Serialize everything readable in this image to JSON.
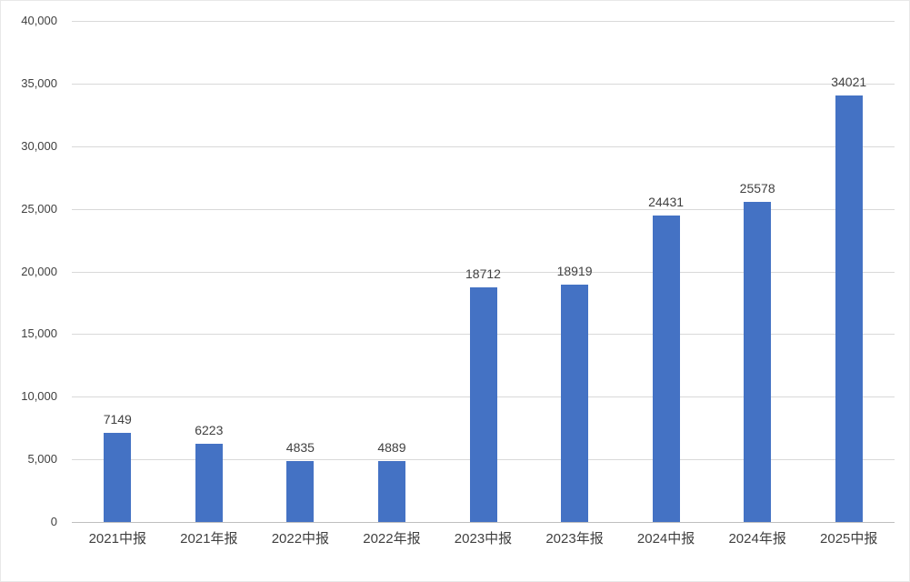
{
  "chart_data": {
    "type": "bar",
    "title": "",
    "xlabel": "",
    "ylabel": "",
    "categories": [
      "2021中报",
      "2021年报",
      "2022中报",
      "2022年报",
      "2023中报",
      "2023年报",
      "2024中报",
      "2024年报",
      "2025中报"
    ],
    "values": [
      7149,
      6223,
      4835,
      4889,
      18712,
      18919,
      24431,
      25578,
      34021
    ],
    "value_labels": [
      "7149",
      "6223",
      "4835",
      "4889",
      "18712",
      "18919",
      "24431",
      "25578",
      "34021"
    ],
    "ylim": [
      0,
      40000
    ],
    "ytick_interval": 5000,
    "ytick_labels": [
      "0",
      "5,000",
      "10,000",
      "15,000",
      "20,000",
      "25,000",
      "30,000",
      "35,000",
      "40,000"
    ],
    "grid": true,
    "legend_position": "none",
    "bar_color": "#4472c4",
    "gridline_color": "#d9d9d9",
    "axis_line_color": "#bfbfbf",
    "label_color": "#404040"
  }
}
